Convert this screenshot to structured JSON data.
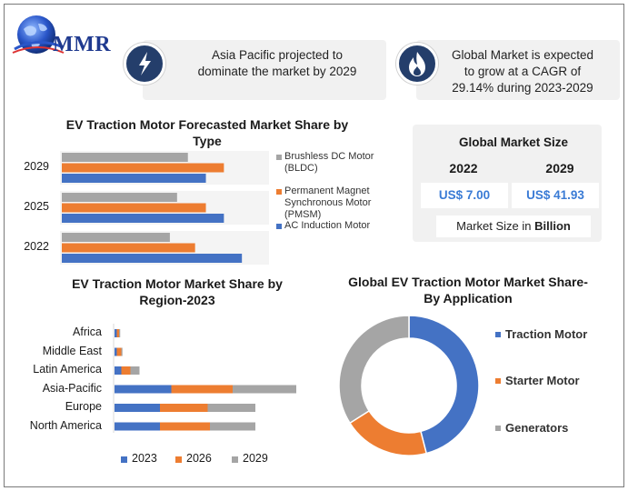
{
  "brand": {
    "logo_text": "MMR"
  },
  "info_boxes": [
    {
      "icon": "lightning-icon",
      "text_lines": [
        "Asia Pacific projected to",
        "dominate the market by 2029"
      ]
    },
    {
      "icon": "flame-icon",
      "text_lines": [
        "Global Market is expected",
        "to grow at a CAGR of",
        "29.14% during 2023-2029"
      ]
    }
  ],
  "market_size": {
    "title": "Global Market Size",
    "years": [
      "2022",
      "2029"
    ],
    "values": [
      "US$ 7.00",
      "US$ 41.93"
    ],
    "note_prefix": "Market Size in ",
    "note_bold": "Billion"
  },
  "colors": {
    "blue": "#4472c4",
    "orange": "#ed7d31",
    "gray": "#a5a5a5",
    "dark_badge": "#243e6b"
  },
  "chart_data": [
    {
      "type": "bar",
      "orientation": "horizontal",
      "title_lines": [
        "EV Traction Motor Forecasted Market Share by",
        "Type"
      ],
      "categories": [
        "2029",
        "2025",
        "2022"
      ],
      "series": [
        {
          "name_lines": [
            "Brushless DC Motor",
            "(BLDC)"
          ],
          "color": "#a5a5a5",
          "values": [
            35,
            32,
            30
          ]
        },
        {
          "name_lines": [
            "Permanent Magnet",
            "Synchronous Motor",
            "(PMSM)"
          ],
          "color": "#ed7d31",
          "values": [
            45,
            40,
            37
          ]
        },
        {
          "name_lines": [
            "AC Induction Motor"
          ],
          "color": "#4472c4",
          "values": [
            40,
            45,
            50
          ]
        }
      ],
      "xlim": [
        0,
        55
      ],
      "grid": false,
      "legend": "right"
    },
    {
      "type": "bar",
      "orientation": "horizontal",
      "stacked": true,
      "title_lines": [
        "EV Traction Motor Market Share by",
        "Region-2023"
      ],
      "categories": [
        "Africa",
        "Middle East",
        "Latin America",
        "Asia-Pacific",
        "Europe",
        "North America"
      ],
      "series": [
        {
          "name": "2023",
          "color": "#4472c4",
          "values": [
            1,
            1,
            3,
            25,
            20,
            20
          ]
        },
        {
          "name": "2026",
          "color": "#ed7d31",
          "values": [
            1,
            2,
            4,
            27,
            21,
            22
          ]
        },
        {
          "name": "2029",
          "color": "#a5a5a5",
          "values": [
            0.5,
            0.5,
            4,
            28,
            21,
            20
          ]
        }
      ],
      "xlim": [
        0,
        90
      ],
      "grid": false,
      "legend": "bottom"
    },
    {
      "type": "pie",
      "donut": true,
      "title_lines": [
        "Global EV Traction Motor Market Share-",
        "By Application"
      ],
      "labels": [
        "Traction Motor",
        "Starter Motor",
        "Generators"
      ],
      "values": [
        46,
        20,
        34
      ],
      "colors": [
        "#4472c4",
        "#ed7d31",
        "#a5a5a5"
      ],
      "legend": "right"
    }
  ]
}
